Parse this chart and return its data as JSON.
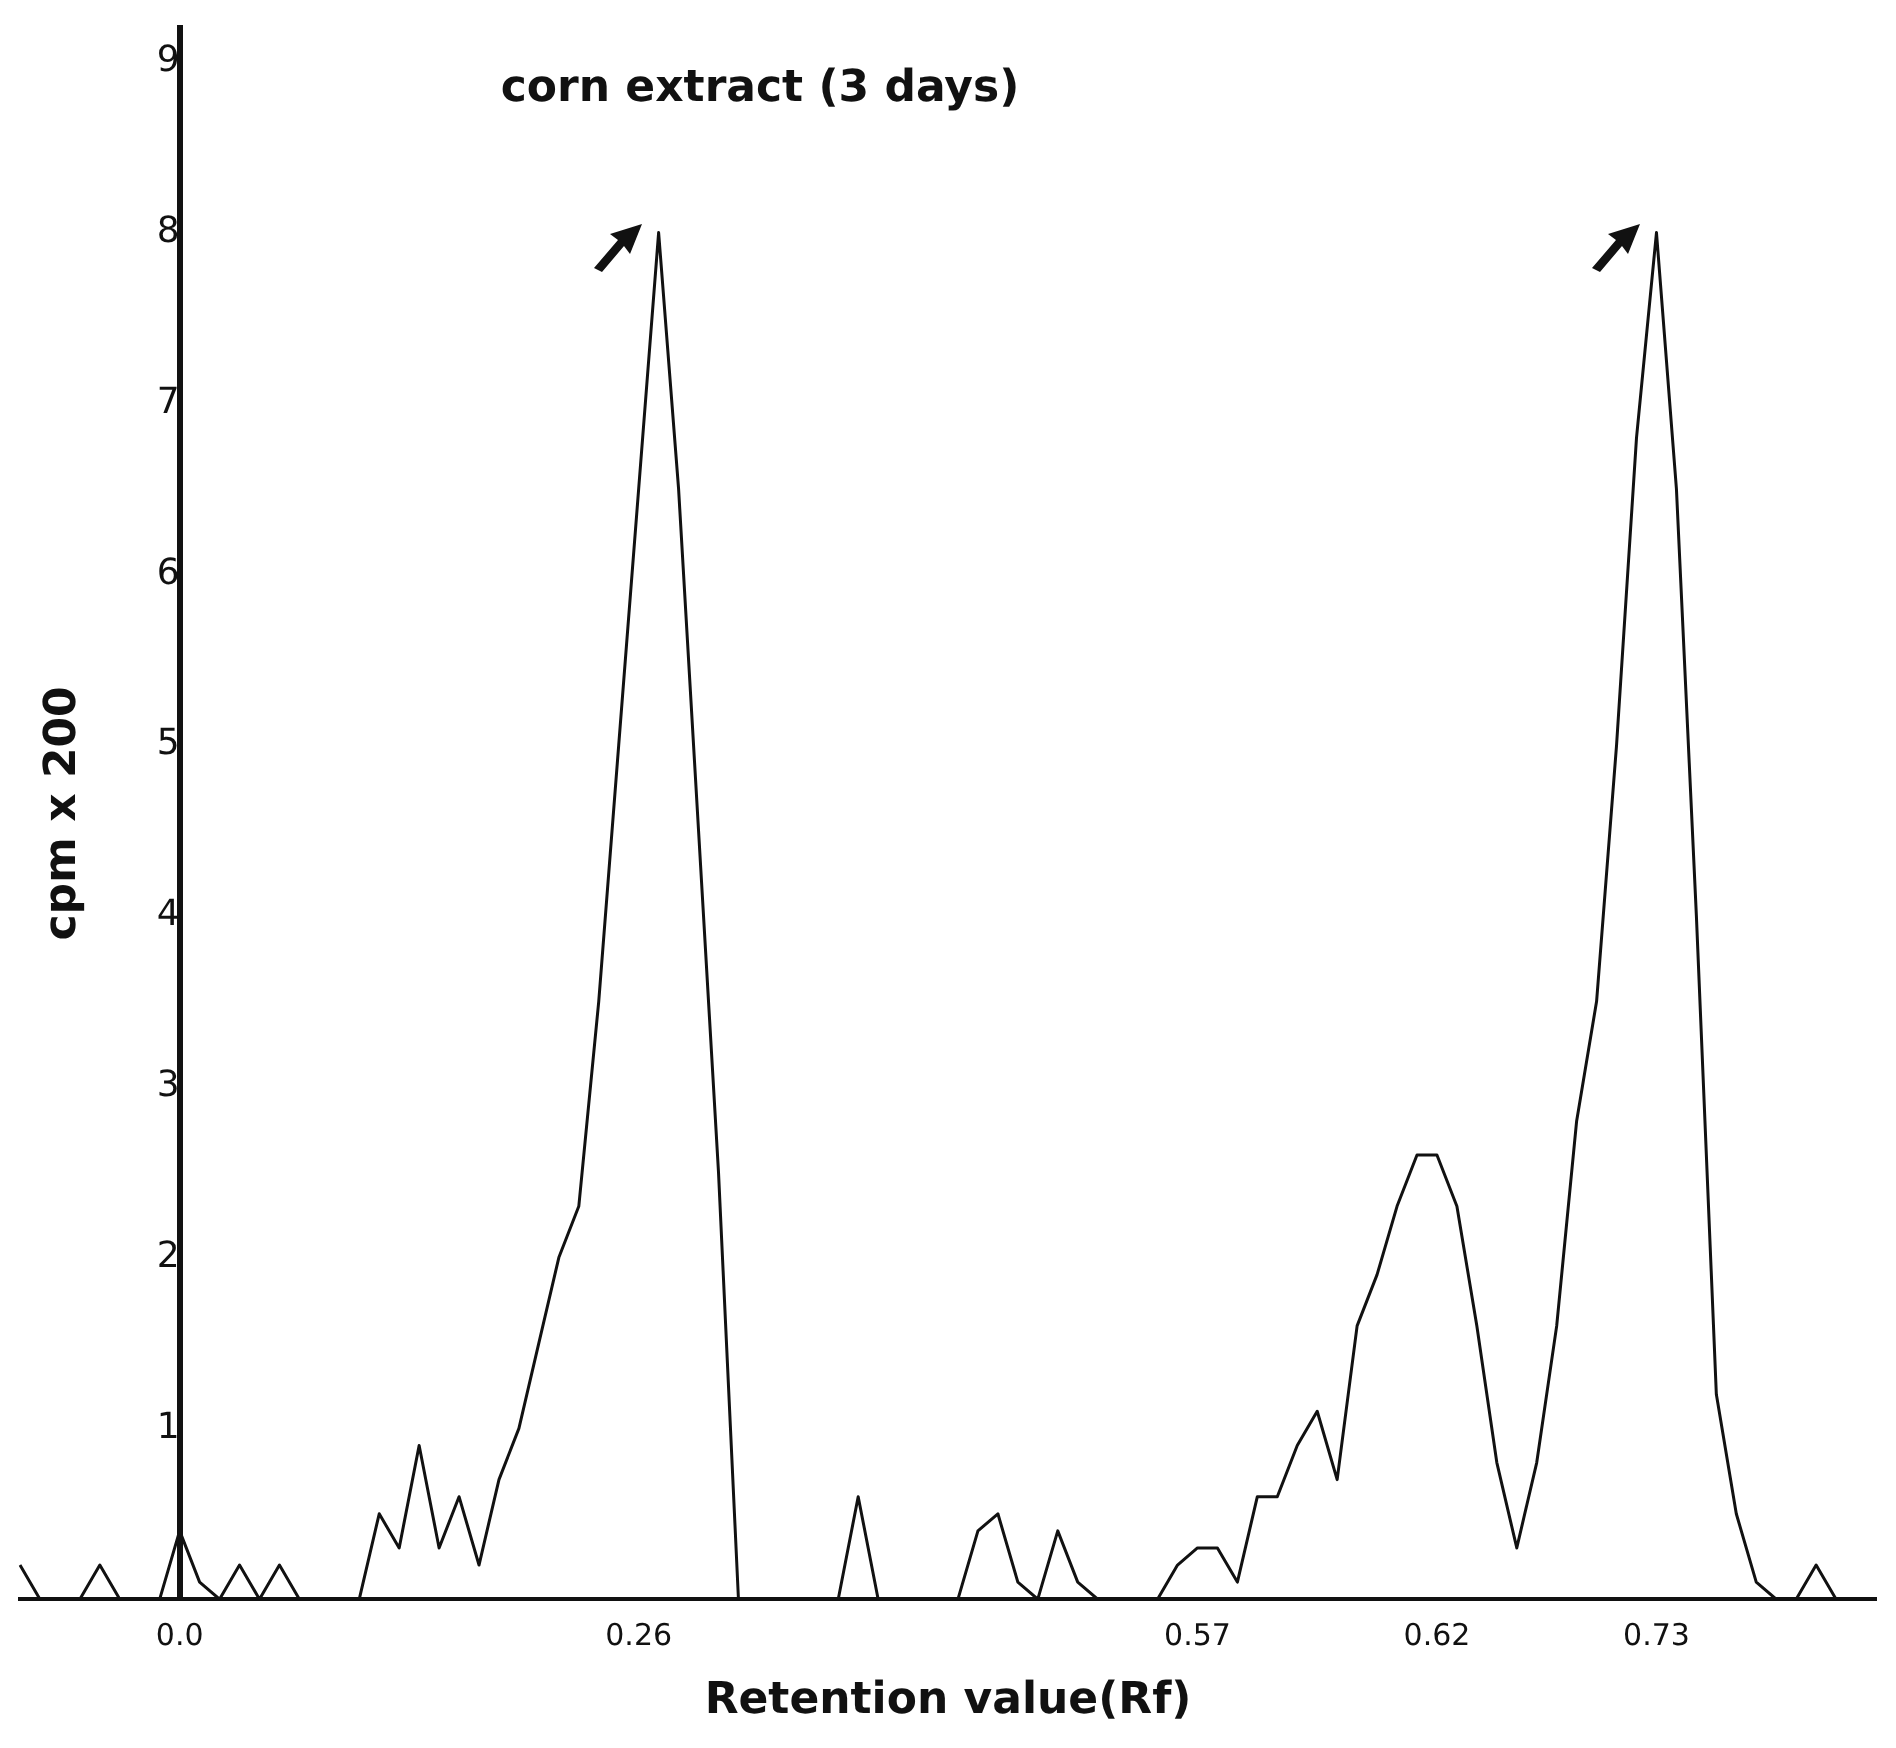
{
  "chart_data": {
    "type": "line",
    "title": "corn extract (3 days)",
    "xlabel": "Retention value(Rf)",
    "ylabel": "cpm x 200",
    "categories": [
      null,
      null,
      null,
      null,
      null,
      null,
      null,
      null,
      "0.0",
      null,
      null,
      null,
      null,
      null,
      null,
      null,
      null,
      null,
      null,
      null,
      null,
      null,
      null,
      null,
      null,
      null,
      null,
      null,
      null,
      null,
      null,
      "0.26",
      null,
      null,
      null,
      null,
      null,
      null,
      null,
      null,
      null,
      null,
      null,
      null,
      null,
      null,
      null,
      null,
      null,
      null,
      null,
      null,
      null,
      null,
      null,
      null,
      null,
      null,
      null,
      "0.57",
      null,
      null,
      null,
      null,
      null,
      null,
      null,
      null,
      null,
      null,
      null,
      "0.62",
      null,
      null,
      null,
      null,
      null,
      null,
      null,
      null,
      null,
      null,
      "0.73",
      null,
      null,
      null,
      null,
      null,
      null,
      null,
      null,
      null,
      null,
      null
    ],
    "series": [
      {
        "color": "#111111",
        "values": [
          0.2,
          0,
          0,
          0,
          0.2,
          0,
          0,
          0,
          0.4,
          0.1,
          0,
          0.2,
          0,
          0.2,
          0,
          0,
          0,
          0,
          0.5,
          0.3,
          0.9,
          0.3,
          0.6,
          0.2,
          0.7,
          1.0,
          1.5,
          2.0,
          2.3,
          3.5,
          5.0,
          6.5,
          8.0,
          6.5,
          4.5,
          2.5,
          0,
          0,
          0,
          0,
          0,
          0,
          0.6,
          0,
          0,
          0,
          0,
          0,
          0.4,
          0.5,
          0.1,
          0,
          0.4,
          0.1,
          0,
          0,
          0,
          0,
          0.2,
          0.3,
          0.3,
          0.1,
          0.6,
          0.6,
          0.9,
          1.1,
          0.7,
          1.6,
          1.9,
          2.3,
          2.6,
          2.6,
          2.3,
          1.6,
          0.8,
          0.3,
          0.8,
          1.6,
          2.8,
          3.5,
          5.0,
          6.8,
          8.0,
          6.5,
          4.0,
          1.2,
          0.5,
          0.1,
          0,
          0,
          0.2,
          0,
          0,
          0
        ]
      }
    ],
    "ylim": [
      0,
      9.2
    ],
    "yticks": [
      1,
      2,
      3,
      4,
      5,
      6,
      7,
      8,
      9
    ],
    "grid": false,
    "legend": false,
    "marker": "none",
    "line_style": "solid"
  }
}
